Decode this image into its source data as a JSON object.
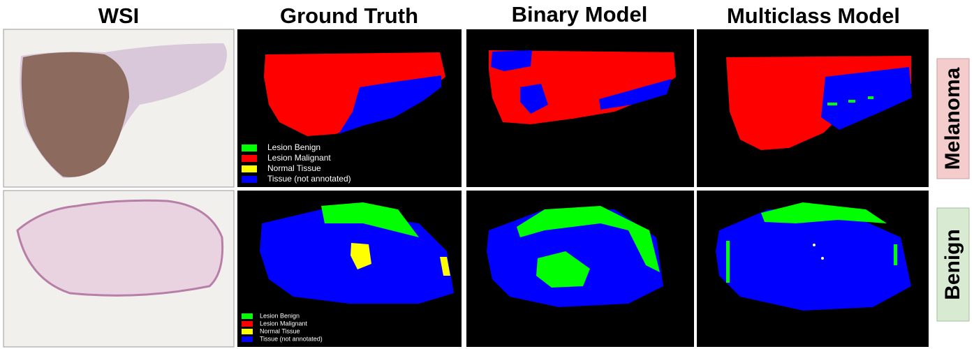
{
  "columns": [
    "WSI",
    "Ground Truth",
    "Binary Model",
    "Multiclass Model"
  ],
  "rows": [
    "Melanoma",
    "Benign"
  ],
  "legends": [
    {
      "items": [
        "Lesion Benign",
        "Lesion Malignant",
        "Normal Tissue",
        "Tissue (not annotated)"
      ]
    },
    {
      "items": [
        "Lesion Benign",
        "Lesion Malignant",
        "Normal Tissue",
        "Tissue (not annotated)"
      ]
    }
  ]
}
